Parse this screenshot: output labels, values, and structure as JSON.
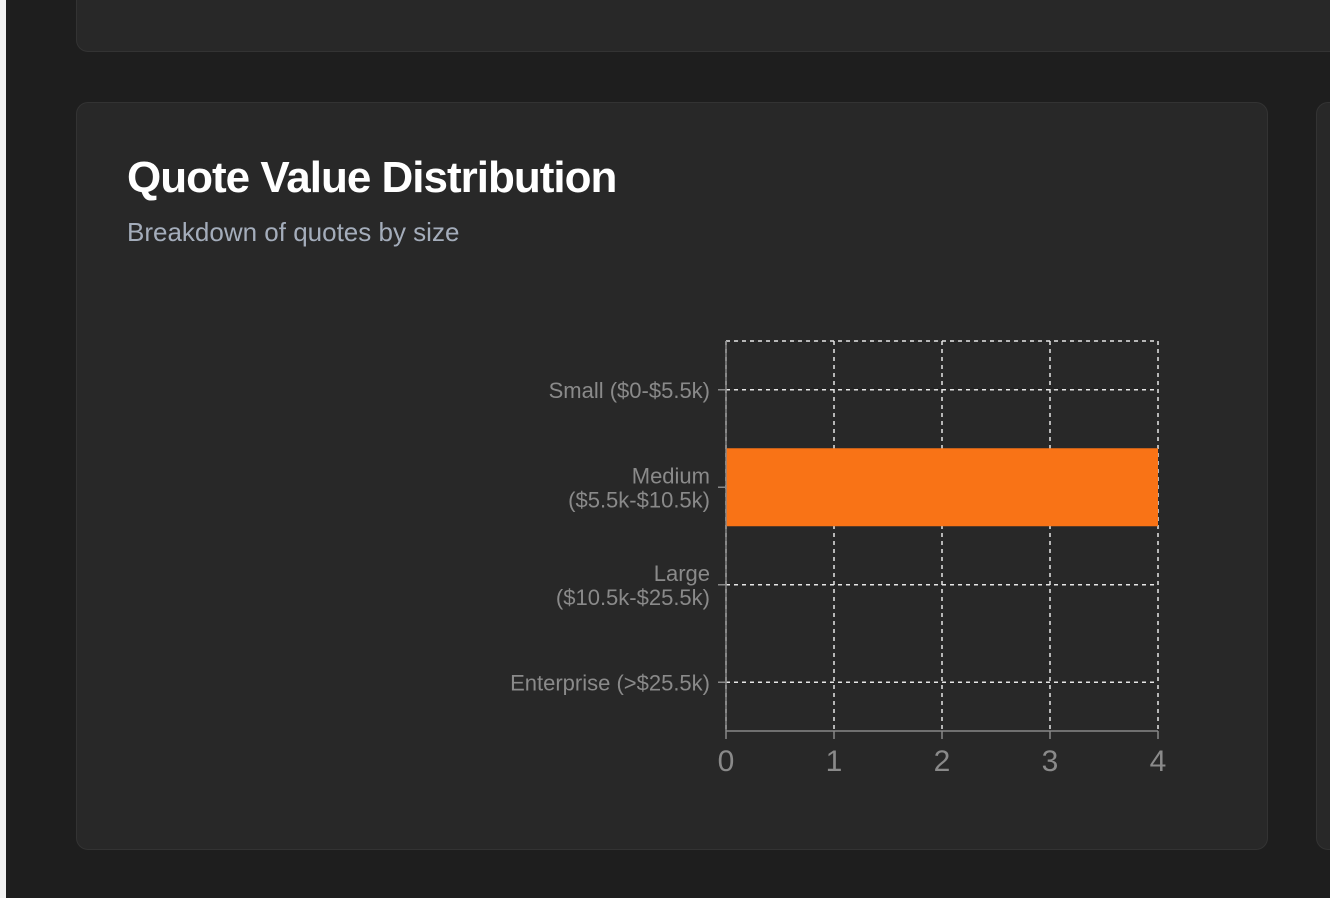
{
  "card": {
    "title": "Quote Value Distribution",
    "subtitle": "Breakdown of quotes by size"
  },
  "chart_data": {
    "type": "bar",
    "orientation": "horizontal",
    "categories": [
      [
        "Small ($0-$5.5k)"
      ],
      [
        "Medium",
        "($5.5k-$10.5k)"
      ],
      [
        "Large",
        "($10.5k-$25.5k)"
      ],
      [
        "Enterprise (>$25.5k)"
      ]
    ],
    "values": [
      0,
      4,
      0,
      0
    ],
    "xlim": [
      0,
      4
    ],
    "xticks": [
      0,
      1,
      2,
      3,
      4
    ],
    "grid": true,
    "bar_color": "#f97316"
  },
  "colors": {
    "background": "#1e1e1e",
    "card": "#282828",
    "grid": "#e6e6e6",
    "axis": "#888888",
    "label": "#8a8a8a"
  }
}
